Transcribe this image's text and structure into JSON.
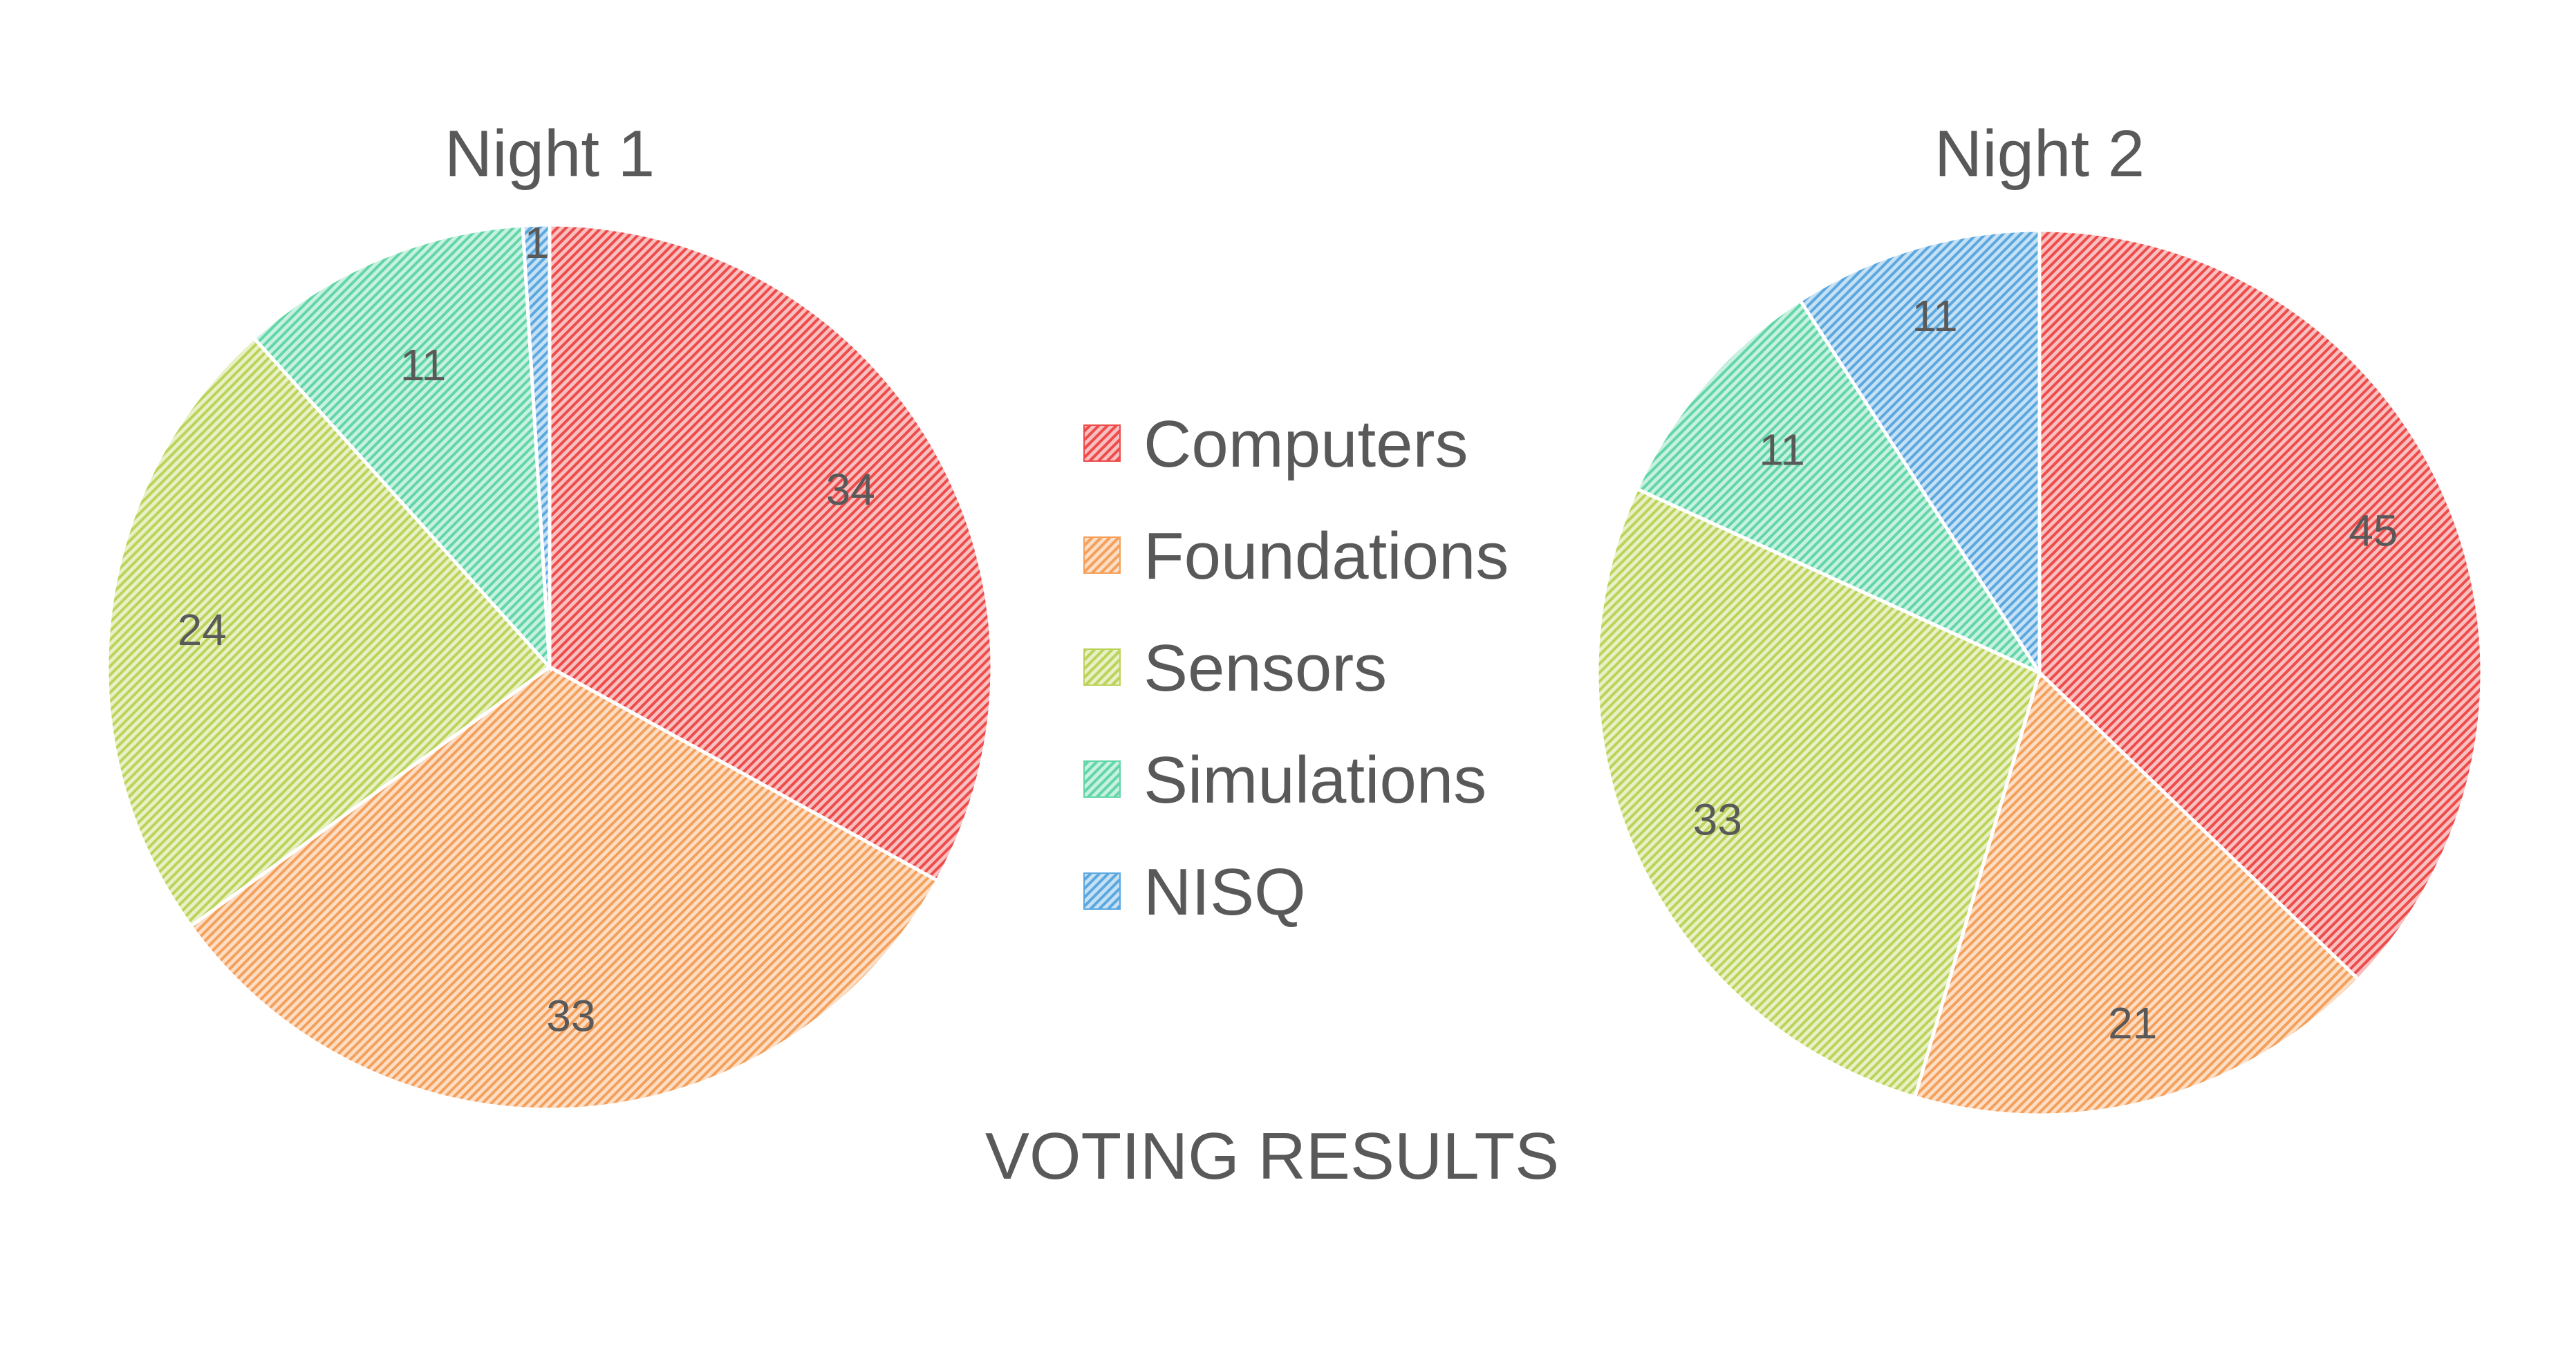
{
  "caption": "VOTING RESULTS",
  "legend": {
    "placement": "center",
    "entries": [
      "Computers",
      "Foundations",
      "Sensors",
      "Simulations",
      "NISQ"
    ]
  },
  "colors": {
    "Computers": "#ee4b4b",
    "Foundations": "#f5a05a",
    "Sensors": "#bcd35a",
    "Simulations": "#62d6a8",
    "NISQ": "#5ba8e0"
  },
  "chart_data": [
    {
      "type": "pie",
      "title": "Night 1",
      "categories": [
        "Computers",
        "Foundations",
        "Sensors",
        "Simulations",
        "NISQ"
      ],
      "values": [
        34,
        33,
        24,
        11,
        1
      ],
      "start_angle": "12 o'clock",
      "direction": "clockwise"
    },
    {
      "type": "pie",
      "title": "Night 2",
      "categories": [
        "Computers",
        "Foundations",
        "Sensors",
        "Simulations",
        "NISQ"
      ],
      "values": [
        45,
        21,
        33,
        11,
        11
      ],
      "start_angle": "12 o'clock",
      "direction": "clockwise"
    }
  ]
}
